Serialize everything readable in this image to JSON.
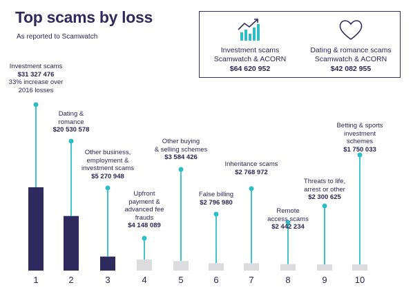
{
  "header": {
    "title": "Top scams by loss",
    "subtitle": "As reported to Scamwatch"
  },
  "summary": [
    {
      "icon": "chart-growth-icon",
      "line1": "Investment scams",
      "line2": "Scamwatch & ACORN",
      "amount": "$64 620 952"
    },
    {
      "icon": "heart-icon",
      "line1": "Dating & romance scams",
      "line2": "Scamwatch & ACORN",
      "amount": "$42 082 955"
    }
  ],
  "colors": {
    "primary_bar": "#2e2a5e",
    "secondary_bar": "#dcdcdf",
    "accent": "#2dbdc4",
    "text": "#2b2452"
  },
  "chart_data": {
    "type": "bar",
    "categories": [
      "1",
      "2",
      "3",
      "4",
      "5",
      "6",
      "7",
      "8",
      "9",
      "10"
    ],
    "values": [
      31327476,
      20530578,
      5270948,
      4148089,
      3584426,
      2796980,
      2768972,
      2442234,
      2300625,
      1750033
    ],
    "labels": [
      [
        "Investment scams"
      ],
      [
        "Dating &",
        "romance"
      ],
      [
        "Other business,",
        "employment &",
        "investment scams"
      ],
      [
        "Upfront",
        "payment &",
        "advanced fee",
        "frauds"
      ],
      [
        "Other buying",
        "& selling schemes"
      ],
      [
        "False billing"
      ],
      [
        "Inheritance scams"
      ],
      [
        "Remote",
        "access scams"
      ],
      [
        "Threats to life,",
        "arrest or other"
      ],
      [
        "Betting & sports",
        "investment schemes"
      ]
    ],
    "amounts": [
      "$31 327 476",
      "$20 530 578",
      "$5 270 948",
      "$4 148 089",
      "$3 584 426",
      "$2 796 980",
      "$2 768 972",
      "$2 442 234",
      "$2 300 625",
      "$1 750 033"
    ],
    "annotation": [
      "33% increase over",
      "2016 losses"
    ]
  }
}
